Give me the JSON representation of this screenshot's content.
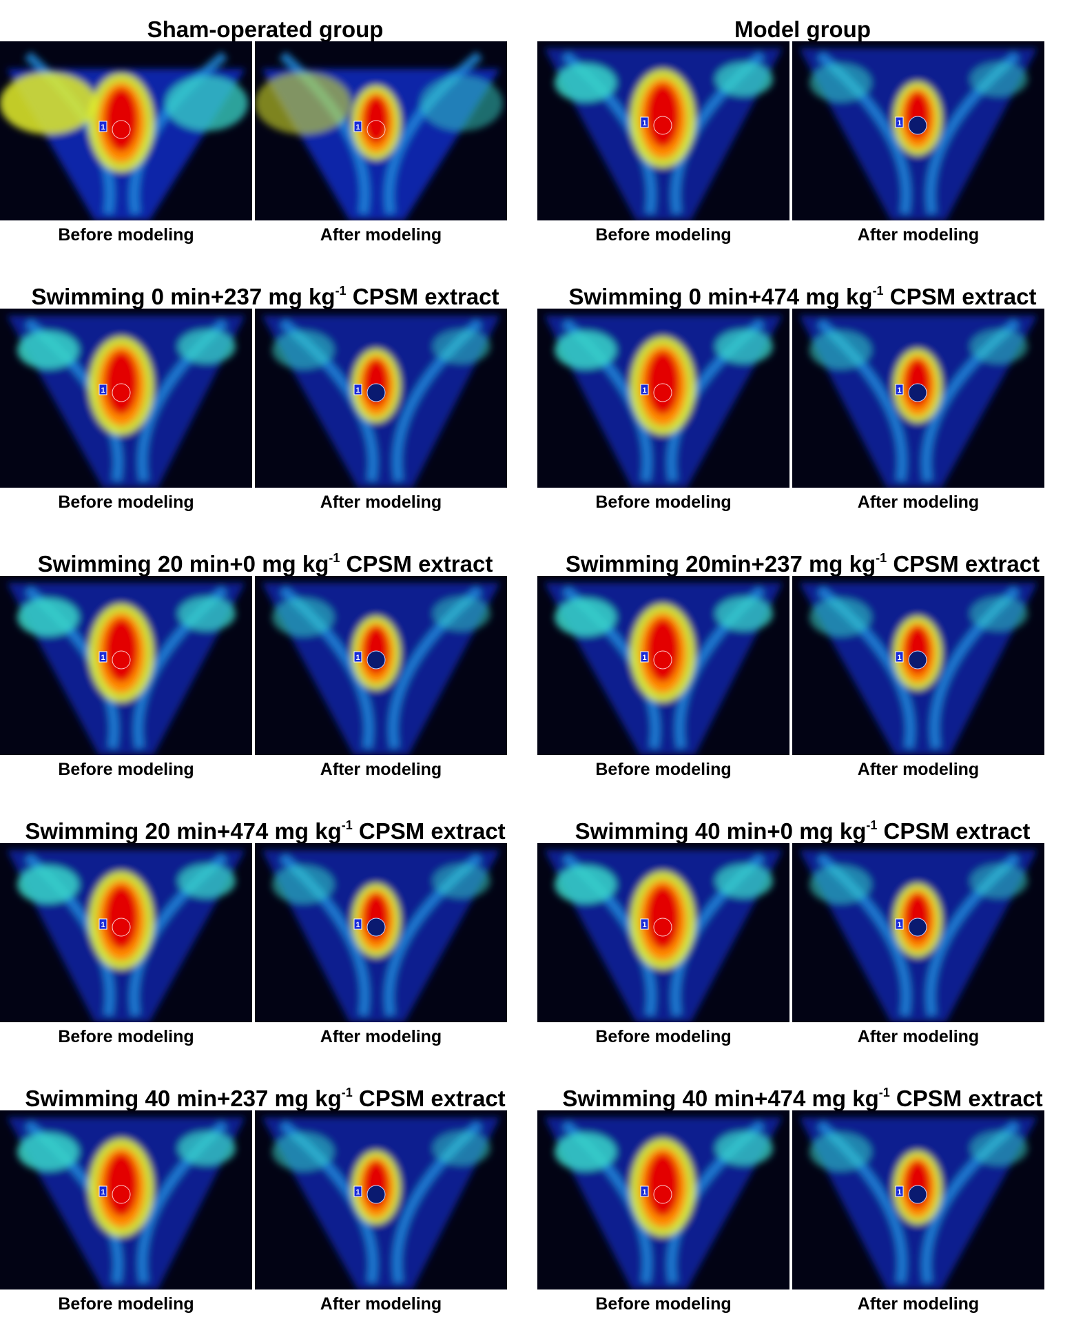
{
  "groups": [
    {
      "title": "Sham-operated group",
      "dose_sup": "",
      "title_suffix": "",
      "before_label": "Before modeling",
      "after_label": "After modeling"
    },
    {
      "title": "Model group",
      "dose_sup": "",
      "title_suffix": "",
      "before_label": "Before modeling",
      "after_label": "After modeling"
    },
    {
      "title": "Swimming 0 min+237 mg kg",
      "dose_sup": "-1",
      "title_suffix": " CPSM extract",
      "before_label": "Before modeling",
      "after_label": "After modeling"
    },
    {
      "title": "Swimming 0 min+474 mg kg",
      "dose_sup": "-1",
      "title_suffix": " CPSM extract",
      "before_label": "Before modeling",
      "after_label": "After modeling"
    },
    {
      "title": "Swimming 20 min+0 mg kg",
      "dose_sup": "-1",
      "title_suffix": " CPSM extract",
      "before_label": "Before modeling",
      "after_label": "After modeling"
    },
    {
      "title": "Swimming 20min+237 mg kg",
      "dose_sup": "-1",
      "title_suffix": " CPSM extract",
      "before_label": "Before modeling",
      "after_label": "After modeling"
    },
    {
      "title": "Swimming 20 min+474 mg kg",
      "dose_sup": "-1",
      "title_suffix": " CPSM extract",
      "before_label": "Before modeling",
      "after_label": "After modeling"
    },
    {
      "title": "Swimming 40 min+0 mg kg",
      "dose_sup": "-1",
      "title_suffix": " CPSM extract",
      "before_label": "Before modeling",
      "after_label": "After modeling"
    },
    {
      "title": "Swimming 40 min+237 mg kg",
      "dose_sup": "-1",
      "title_suffix": " CPSM extract",
      "before_label": "Before modeling",
      "after_label": "After modeling"
    },
    {
      "title": "Swimming 40 min+474 mg kg",
      "dose_sup": "-1",
      "title_suffix": " CPSM extract",
      "before_label": "Before modeling",
      "after_label": "After modeling"
    }
  ],
  "roi_marker": "1",
  "colors": {
    "background": "#020314",
    "low": "#0a2ab8",
    "mid_low": "#1f8fe0",
    "mid": "#39d7c8",
    "mid_high": "#e4ef2a",
    "high": "#ff8a00",
    "peak": "#e30000"
  }
}
